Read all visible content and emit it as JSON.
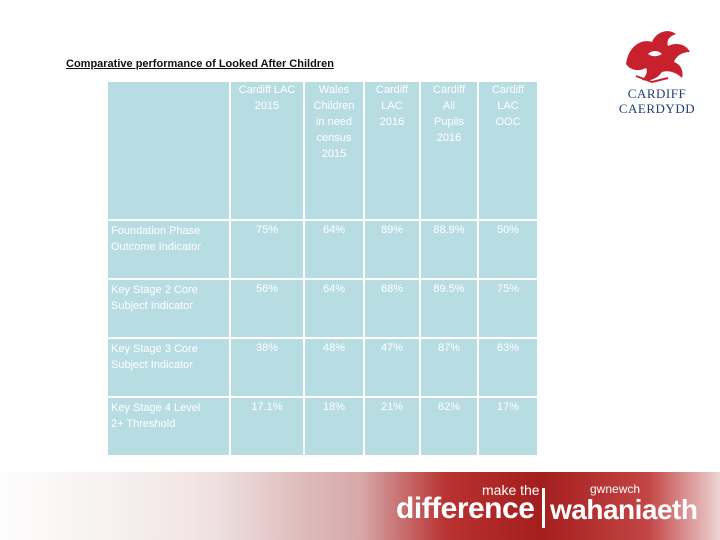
{
  "title": "Comparative performance of Looked After Children",
  "logo": {
    "line1": "CARDIFF",
    "line2": "CAERDYDD",
    "brand_color": "#c8202c",
    "text_color": "#1e3f72"
  },
  "table": {
    "columns": [
      "Cardiff LAC 2015",
      "Wales Children in need census 2015",
      "Cardiff LAC 2016",
      "Cardiff All Pupils 2016",
      "Cardiff LAC OOC"
    ],
    "column_lines": [
      [
        "Cardiff LAC",
        "2015"
      ],
      [
        "Wales",
        "Children",
        "in need",
        "census",
        "2015"
      ],
      [
        "Cardiff",
        "LAC",
        "2016"
      ],
      [
        "Cardiff",
        "All",
        "Pupils",
        "2016"
      ],
      [
        "Cardiff",
        "LAC",
        "OOC"
      ]
    ],
    "rows": [
      {
        "label_lines": [
          "Foundation Phase",
          "Outcome Indicator"
        ],
        "values": [
          "75%",
          "64%",
          "89%",
          "88.9%",
          "50%"
        ]
      },
      {
        "label_lines": [
          "Key Stage 2 Core",
          "Subject Indicator"
        ],
        "values": [
          "56%",
          "64%",
          "68%",
          "89.5%",
          "75%"
        ]
      },
      {
        "label_lines": [
          "Key Stage 3 Core",
          "Subject Indicator"
        ],
        "values": [
          "38%",
          "48%",
          "47%",
          "87%",
          "63%"
        ]
      },
      {
        "label_lines": [
          "Key Stage 4 Level",
          "2+ Threshold"
        ],
        "values": [
          "17.1%",
          "18%",
          "21%",
          "62%",
          "17%"
        ]
      }
    ],
    "cell_color": "#b7dde3"
  },
  "footer": {
    "make_the": "make the",
    "difference": "difference",
    "gwnewch": "gwnewch",
    "wahaniaeth": "wahaniaeth"
  }
}
